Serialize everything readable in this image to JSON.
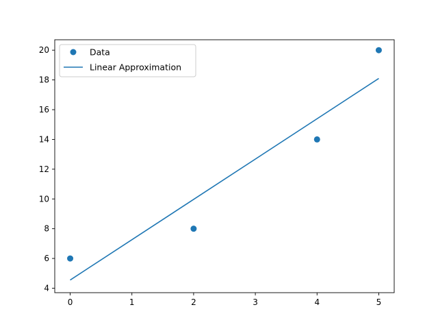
{
  "chart_data": {
    "type": "scatter",
    "title": "",
    "xlabel": "",
    "ylabel": "",
    "xlim": [
      -0.25,
      5.25
    ],
    "ylim": [
      3.7,
      20.7
    ],
    "x_ticks": [
      0,
      1,
      2,
      3,
      4,
      5
    ],
    "y_ticks": [
      4,
      6,
      8,
      10,
      12,
      14,
      16,
      18,
      20
    ],
    "grid": false,
    "legend_position": "top-left",
    "series": [
      {
        "name": "Data",
        "kind": "scatter",
        "color": "#1f77b4",
        "points": [
          {
            "x": 0,
            "y": 6
          },
          {
            "x": 2,
            "y": 8
          },
          {
            "x": 4,
            "y": 14
          },
          {
            "x": 5,
            "y": 20
          }
        ]
      },
      {
        "name": "Linear Approximation",
        "kind": "line",
        "color": "#1f77b4",
        "points": [
          {
            "x": 0,
            "y": 4.55
          },
          {
            "x": 5,
            "y": 18.1
          }
        ]
      }
    ]
  }
}
